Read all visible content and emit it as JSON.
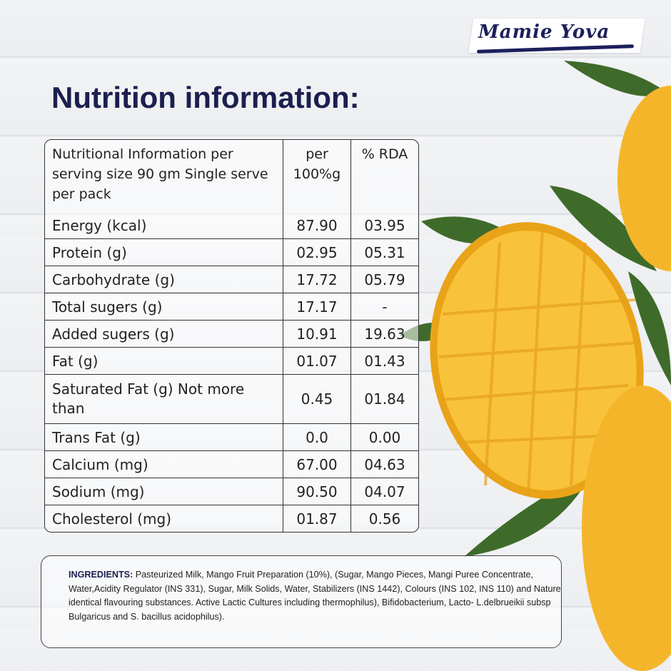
{
  "brand": {
    "name": "Mamie Yova",
    "colors": {
      "navy": "#1c1f4f",
      "mango": "#f5b52a",
      "leaf": "#3f6b2a"
    }
  },
  "title": "Nutrition information:",
  "table": {
    "header": [
      "Nutritional Information per serving size 90 gm Single serve per pack",
      "per 100%g",
      "% RDA"
    ],
    "rows": [
      {
        "name": "Energy (kcal)",
        "per100": "87.90",
        "rda": "03.95"
      },
      {
        "name": "Protein (g)",
        "per100": "02.95",
        "rda": "05.31"
      },
      {
        "name": "Carbohydrate (g)",
        "per100": "17.72",
        "rda": "05.79"
      },
      {
        "name": "Total sugers (g)",
        "per100": "17.17",
        "rda": "-"
      },
      {
        "name": "Added sugers (g)",
        "per100": "10.91",
        "rda": "19.63"
      },
      {
        "name": "Fat (g)",
        "per100": "01.07",
        "rda": "01.43"
      },
      {
        "name": "Saturated Fat (g) Not more than",
        "per100": "0.45",
        "rda": "01.84"
      },
      {
        "name": "Trans Fat (g)",
        "per100": "0.0",
        "rda": "0.00"
      },
      {
        "name": "Calcium (mg)",
        "per100": "67.00",
        "rda": "04.63"
      },
      {
        "name": "Sodium (mg)",
        "per100": "90.50",
        "rda": "04.07"
      },
      {
        "name": "Cholesterol (mg)",
        "per100": "01.87",
        "rda": "0.56"
      }
    ]
  },
  "ingredients": {
    "label": "INGREDIENTS:",
    "text": " Pasteurized Milk, Mango Fruit Preparation (10%), (Sugar, Mango Pieces, Mangi Puree Concentrate, Water,Acidity Regulator (INS 331), Sugar, Milk Solids, Water, Stabilizers (INS 1442), Colours (INS 102, INS 110) and Nature identical flavouring substances. Active Lactic Cultures including thermophilus), Bifidobacterium,  Lacto- L.delbrueikii subsp Bulgaricus and S. bacillus acidophilus)."
  }
}
